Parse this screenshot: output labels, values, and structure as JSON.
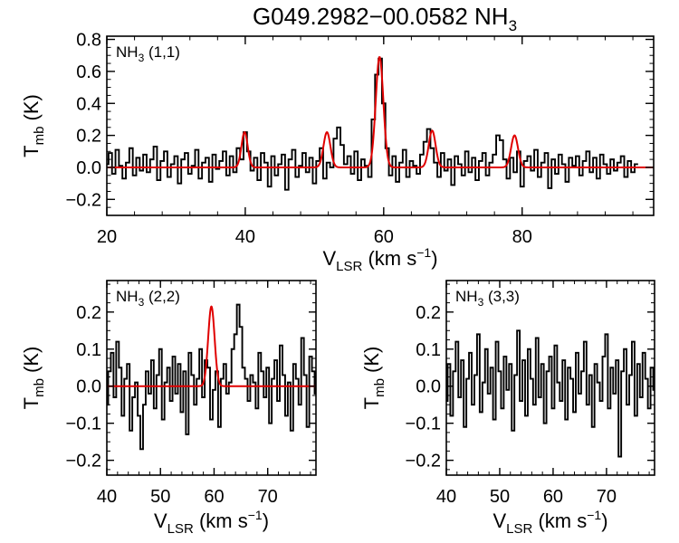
{
  "title": {
    "main": "G049.2982−00.0582 NH",
    "sub": "3"
  },
  "colors": {
    "data": "#000000",
    "fit": "#e00000",
    "axes": "#000000",
    "background": "#ffffff"
  },
  "chart_data": [
    {
      "type": "line",
      "panel": "top",
      "label": {
        "main": "NH",
        "sub": "3",
        "tail": " (1,1)"
      },
      "xlim": [
        20,
        99
      ],
      "ylim": [
        -0.3,
        0.82
      ],
      "xticks": [
        20,
        40,
        60,
        80
      ],
      "xtick_labels": [
        "20",
        "40",
        "60",
        "80"
      ],
      "yticks": [
        -0.2,
        0.0,
        0.2,
        0.4,
        0.6,
        0.8
      ],
      "ytick_labels": [
        "−0.2",
        "0.0",
        "0.2",
        "0.4",
        "0.6",
        "0.8"
      ],
      "xlabel": {
        "main": "V",
        "sub": "LSR",
        "tail": " (km s",
        "sup": "−1",
        "end": ")"
      },
      "ylabel": {
        "main": "T",
        "sub": "mb",
        "tail": " (K)"
      },
      "series": [
        {
          "name": "spectrum",
          "style": "step",
          "x_start": 20,
          "x_step": 0.5,
          "values": [
            0.02,
            0.09,
            -0.04,
            0.11,
            0.01,
            -0.07,
            0.03,
            0.12,
            -0.05,
            0.06,
            -0.02,
            0.08,
            -0.03,
            0.05,
            0.13,
            -0.08,
            0.04,
            0.1,
            -0.06,
            0.02,
            0.07,
            -0.1,
            0.05,
            0.09,
            -0.04,
            0.01,
            0.11,
            -0.07,
            0.03,
            0.06,
            -0.09,
            0.08,
            -0.01,
            0.04,
            0.1,
            -0.05,
            0.07,
            -0.03,
            0.12,
            0.05,
            0.22,
            0.1,
            -0.02,
            0.06,
            -0.08,
            0.09,
            0.03,
            -0.12,
            0.07,
            -0.05,
            0.02,
            0.08,
            -0.14,
            0.05,
            0.11,
            -0.06,
            0.01,
            0.09,
            -0.03,
            0.06,
            -0.1,
            0.04,
            0.12,
            -0.07,
            0.03,
            0.0,
            0.18,
            0.25,
            0.14,
            0.02,
            0.07,
            -0.04,
            0.1,
            -0.08,
            0.05,
            0.01,
            -0.06,
            0.3,
            0.58,
            0.68,
            0.4,
            0.12,
            -0.05,
            0.07,
            -0.09,
            0.03,
            0.11,
            -0.06,
            0.04,
            0.01,
            -0.04,
            0.08,
            0.16,
            0.24,
            0.12,
            0.03,
            -0.06,
            0.09,
            -0.02,
            0.05,
            -0.11,
            0.07,
            0.02,
            -0.05,
            0.1,
            -0.03,
            0.06,
            -0.08,
            0.04,
            0.09,
            -0.05,
            0.03,
            0.08,
            0.2,
            0.17,
            0.05,
            -0.07,
            0.06,
            -0.03,
            0.1,
            -0.12,
            0.04,
            0.07,
            -0.02,
            0.11,
            -0.06,
            0.03,
            0.09,
            -0.13,
            0.05,
            -0.04,
            0.08,
            0.02,
            -0.09,
            0.06,
            0.01,
            0.07,
            -0.05,
            0.04,
            0.1,
            -0.03,
            0.06,
            -0.07,
            0.08,
            0.02,
            -0.04,
            0.05,
            -0.02,
            0.03,
            0.07,
            -0.06,
            0.04,
            -0.03,
            0.02
          ]
        },
        {
          "name": "fit",
          "style": "gaussians",
          "baseline": 0.0,
          "components": [
            {
              "center": 39.9,
              "amplitude": 0.22,
              "sigma": 0.45
            },
            {
              "center": 51.8,
              "amplitude": 0.22,
              "sigma": 0.5
            },
            {
              "center": 59.4,
              "amplitude": 0.69,
              "sigma": 0.55
            },
            {
              "center": 67.0,
              "amplitude": 0.23,
              "sigma": 0.5
            },
            {
              "center": 78.9,
              "amplitude": 0.2,
              "sigma": 0.5
            }
          ]
        }
      ]
    },
    {
      "type": "line",
      "panel": "bottom-left",
      "label": {
        "main": "NH",
        "sub": "3",
        "tail": " (2,2)"
      },
      "xlim": [
        40,
        79
      ],
      "ylim": [
        -0.24,
        0.285
      ],
      "xticks": [
        40,
        50,
        60,
        70
      ],
      "xtick_labels": [
        "40",
        "50",
        "60",
        "70"
      ],
      "yticks": [
        -0.2,
        -0.1,
        0.0,
        0.1,
        0.2
      ],
      "ytick_labels": [
        "−0.2",
        "−0.1",
        "0.0",
        "0.1",
        "0.2"
      ],
      "xlabel": {
        "main": "V",
        "sub": "LSR",
        "tail": " (km s",
        "sup": "−1",
        "end": ")"
      },
      "ylabel": {
        "main": "T",
        "sub": "mb",
        "tail": " (K)"
      },
      "series": [
        {
          "name": "spectrum",
          "style": "step",
          "x_start": 40,
          "x_step": 0.5,
          "values": [
            -0.05,
            0.04,
            0.09,
            -0.03,
            0.12,
            0.05,
            -0.08,
            0.02,
            0.06,
            -0.12,
            -0.03,
            0.01,
            -0.08,
            -0.17,
            -0.05,
            0.04,
            -0.02,
            0.07,
            -0.06,
            0.03,
            0.1,
            -0.09,
            0.01,
            0.05,
            -0.04,
            0.08,
            -0.02,
            0.06,
            -0.07,
            0.04,
            -0.13,
            0.09,
            0.03,
            -0.05,
            0.02,
            0.1,
            -0.03,
            0.07,
            0.05,
            -0.09,
            -0.01,
            0.04,
            -0.11,
            0.02,
            0.06,
            -0.02,
            0.01,
            0.1,
            0.14,
            0.22,
            0.16,
            0.05,
            0.02,
            -0.04,
            0.03,
            0.01,
            -0.06,
            0.09,
            0.04,
            -0.03,
            0.05,
            -0.1,
            0.02,
            0.07,
            -0.04,
            0.11,
            0.03,
            -0.08,
            0.01,
            -0.12,
            0.06,
            0.02,
            -0.05,
            0.13,
            0.03,
            -0.11,
            0.08,
            0.04,
            -0.02
          ]
        },
        {
          "name": "fit",
          "style": "gaussians",
          "baseline": 0.0,
          "components": [
            {
              "center": 59.5,
              "amplitude": 0.215,
              "sigma": 0.6
            }
          ]
        }
      ]
    },
    {
      "type": "line",
      "panel": "bottom-right",
      "label": {
        "main": "NH",
        "sub": "3",
        "tail": " (3,3)"
      },
      "xlim": [
        40,
        79
      ],
      "ylim": [
        -0.24,
        0.285
      ],
      "xticks": [
        40,
        50,
        60,
        70
      ],
      "xtick_labels": [
        "40",
        "50",
        "60",
        "70"
      ],
      "yticks": [
        -0.2,
        -0.1,
        0.0,
        0.1,
        0.2
      ],
      "ytick_labels": [
        "−0.2",
        "−0.1",
        "0.0",
        "0.1",
        "0.2"
      ],
      "xlabel": {
        "main": "V",
        "sub": "LSR",
        "tail": " (km s",
        "sup": "−1",
        "end": ")"
      },
      "ylabel": {
        "main": "T",
        "sub": "mb",
        "tail": " (K)"
      },
      "series": [
        {
          "name": "spectrum",
          "style": "step",
          "x_start": 40,
          "x_step": 0.5,
          "values": [
            -0.04,
            0.06,
            -0.08,
            0.04,
            0.12,
            -0.03,
            0.07,
            -0.11,
            0.02,
            0.09,
            -0.05,
            0.03,
            0.14,
            -0.07,
            0.01,
            0.1,
            -0.02,
            0.05,
            -0.09,
            0.12,
            0.04,
            -0.06,
            0.08,
            -0.01,
            0.06,
            -0.12,
            0.03,
            0.15,
            -0.04,
            0.07,
            -0.08,
            0.1,
            0.02,
            -0.05,
            0.13,
            -0.03,
            0.06,
            -0.1,
            0.04,
            0.08,
            -0.06,
            0.11,
            0.01,
            -0.04,
            0.07,
            -0.09,
            0.05,
            0.02,
            -0.07,
            0.09,
            -0.02,
            0.04,
            0.12,
            -0.05,
            0.03,
            -0.11,
            0.06,
            0.01,
            -0.04,
            0.08,
            0.14,
            -0.06,
            0.05,
            -0.02,
            0.07,
            -0.19,
            0.04,
            0.1,
            -0.05,
            0.03,
            0.12,
            -0.08,
            0.06,
            -0.03,
            0.09,
            0.02,
            -0.06,
            0.05,
            -0.01
          ]
        }
      ]
    }
  ]
}
